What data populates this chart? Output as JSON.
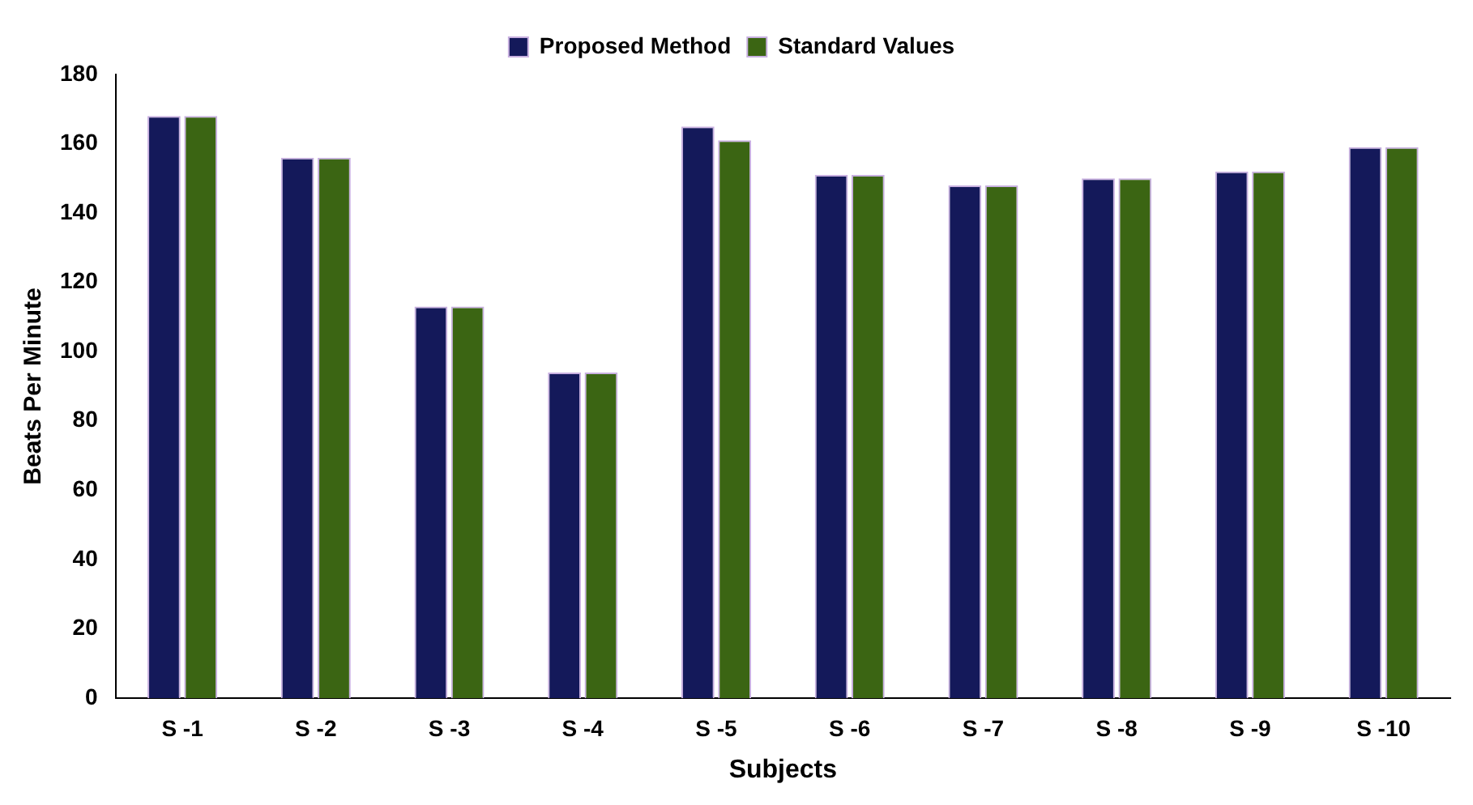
{
  "chart_data": {
    "type": "bar",
    "xlabel": "Subjects",
    "ylabel": "Beats Per Minute",
    "categories": [
      "S -1",
      "S -2",
      "S -3",
      "S -4",
      "S -5",
      "S -6",
      "S -7",
      "S -8",
      "S -9",
      "S -10"
    ],
    "series": [
      {
        "name": "Proposed Method",
        "color": "#14195a",
        "values": [
          168,
          156,
          113,
          94,
          165,
          151,
          148,
          150,
          152,
          159
        ]
      },
      {
        "name": "Standard Values",
        "color": "#3b6513",
        "values": [
          168,
          156,
          113,
          94,
          161,
          151,
          148,
          150,
          152,
          159
        ]
      }
    ],
    "ylim": [
      0,
      180
    ],
    "yticks": [
      0,
      20,
      40,
      60,
      80,
      100,
      120,
      140,
      160,
      180
    ],
    "grid": false,
    "legend": "top"
  }
}
